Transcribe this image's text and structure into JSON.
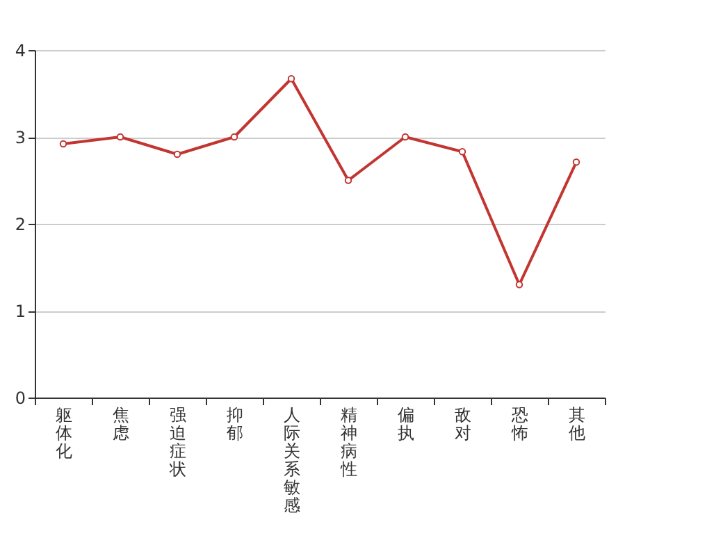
{
  "chart_data": {
    "type": "line",
    "categories": [
      "躯体化",
      "焦虑",
      "强迫症状",
      "抑郁",
      "人际关系敏感",
      "精神病性",
      "偏执",
      "敌对",
      "恐怖",
      "其他"
    ],
    "series": [
      {
        "color": "#c23531",
        "values": [
          2.92,
          3.0,
          2.8,
          3.0,
          3.67,
          2.5,
          3.0,
          2.83,
          1.3,
          2.71
        ]
      }
    ],
    "ylim": [
      0,
      4
    ],
    "yticks": [
      0,
      1,
      2,
      3,
      4
    ],
    "grid": "y",
    "marker": "circle",
    "line_style": "solid"
  }
}
